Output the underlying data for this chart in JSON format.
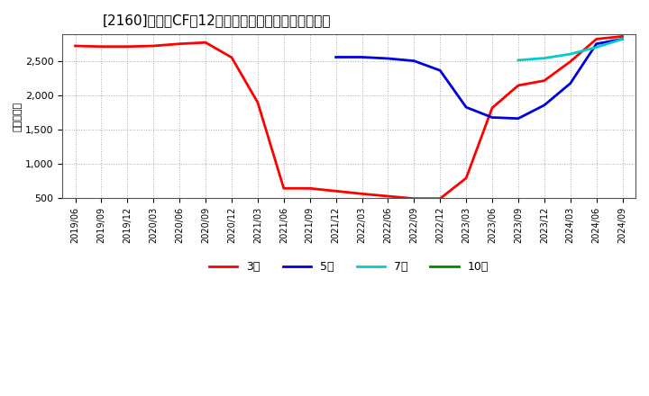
{
  "title": "[2160]　投資CFの12か月移動合計の標準偏差の推移",
  "ylabel": "（百万円）",
  "ylim": [
    500,
    2900
  ],
  "yticks": [
    500,
    1000,
    1500,
    2000,
    2500
  ],
  "background_color": "#ffffff",
  "plot_bg_color": "#ffffff",
  "grid_color": "#aaaaaa",
  "legend": [
    "3年",
    "5年",
    "7年",
    "10年"
  ],
  "legend_colors": [
    "#ff0000",
    "#0000dd",
    "#00cccc",
    "#008800"
  ],
  "series_3y": {
    "dates": [
      "2019/06",
      "2019/09",
      "2019/12",
      "2020/03",
      "2020/06",
      "2020/09",
      "2020/12",
      "2021/03",
      "2021/06",
      "2021/09",
      "2021/12",
      "2022/03",
      "2022/06",
      "2022/09",
      "2022/12",
      "2023/03",
      "2023/06",
      "2023/09",
      "2023/12",
      "2024/03",
      "2024/06",
      "2024/09"
    ],
    "values": [
      2730,
      2720,
      2720,
      2730,
      2760,
      2780,
      2560,
      1900,
      640,
      640,
      600,
      560,
      525,
      490,
      490,
      790,
      1820,
      2150,
      2220,
      2500,
      2830,
      2870
    ]
  },
  "series_5y": {
    "dates": [
      "2021/12",
      "2022/03",
      "2022/06",
      "2022/09",
      "2022/12",
      "2023/03",
      "2023/06",
      "2023/09",
      "2023/12",
      "2024/03",
      "2024/06",
      "2024/09"
    ],
    "values": [
      2565,
      2565,
      2545,
      2510,
      2370,
      1830,
      1680,
      1665,
      1860,
      2180,
      2760,
      2830
    ]
  },
  "series_7y": {
    "dates": [
      "2023/09",
      "2023/12",
      "2024/03",
      "2024/06",
      "2024/09"
    ],
    "values": [
      2520,
      2550,
      2610,
      2710,
      2830
    ]
  },
  "series_10y": {
    "dates": [],
    "values": []
  },
  "xticks": [
    "2019/06",
    "2019/09",
    "2019/12",
    "2020/03",
    "2020/06",
    "2020/09",
    "2020/12",
    "2021/03",
    "2021/06",
    "2021/09",
    "2021/12",
    "2022/03",
    "2022/06",
    "2022/09",
    "2022/12",
    "2023/03",
    "2023/06",
    "2023/09",
    "2023/12",
    "2024/03",
    "2024/06",
    "2024/09"
  ]
}
